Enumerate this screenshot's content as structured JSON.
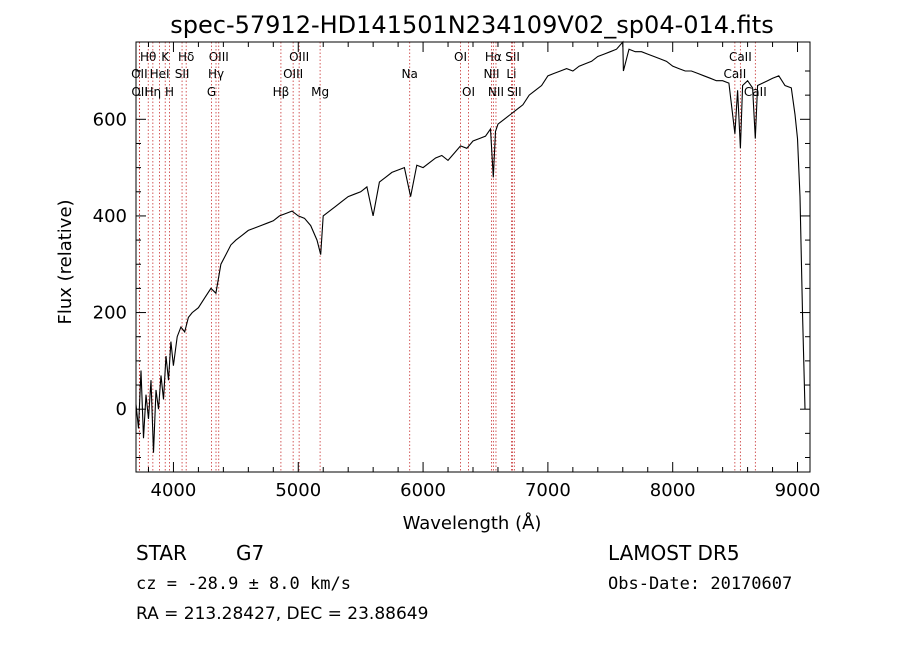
{
  "chart_data": {
    "type": "line",
    "title": "spec-57912-HD141501N234109V02_sp04-014.fits",
    "xlabel": "Wavelength (Å)",
    "ylabel": "Flux (relative)",
    "xlim": [
      3700,
      9100
    ],
    "ylim": [
      -130,
      760
    ],
    "xticks": [
      4000,
      5000,
      6000,
      7000,
      8000,
      9000
    ],
    "yticks": [
      0,
      200,
      400,
      600
    ],
    "grid": false,
    "legend": "none",
    "series": [
      {
        "x": [
          3700,
          3720,
          3740,
          3760,
          3780,
          3800,
          3820,
          3840,
          3860,
          3880,
          3900,
          3920,
          3940,
          3960,
          3980,
          4000,
          4030,
          4060,
          4090,
          4120,
          4150,
          4200,
          4250,
          4300,
          4340,
          4380,
          4420,
          4460,
          4500,
          4550,
          4600,
          4650,
          4700,
          4750,
          4800,
          4850,
          4900,
          4950,
          5000,
          5050,
          5100,
          5150,
          5180,
          5200,
          5250,
          5300,
          5350,
          5400,
          5450,
          5500,
          5550,
          5600,
          5650,
          5700,
          5750,
          5800,
          5850,
          5900,
          5950,
          6000,
          6050,
          6100,
          6150,
          6200,
          6250,
          6300,
          6350,
          6400,
          6450,
          6500,
          6540,
          6563,
          6580,
          6600,
          6650,
          6700,
          6750,
          6800,
          6850,
          6900,
          6950,
          7000,
          7050,
          7100,
          7150,
          7200,
          7250,
          7300,
          7350,
          7400,
          7450,
          7500,
          7550,
          7600,
          7605,
          7650,
          7700,
          7750,
          7800,
          7850,
          7900,
          7950,
          8000,
          8050,
          8100,
          8150,
          8200,
          8250,
          8300,
          8350,
          8400,
          8450,
          8498,
          8520,
          8542,
          8560,
          8600,
          8640,
          8662,
          8680,
          8720,
          8760,
          8800,
          8850,
          8900,
          8950,
          8980,
          9000,
          9020,
          9040,
          9060
        ],
        "values": [
          10,
          -40,
          80,
          -60,
          30,
          -20,
          60,
          -90,
          40,
          0,
          70,
          20,
          110,
          60,
          140,
          90,
          150,
          170,
          160,
          190,
          200,
          210,
          230,
          250,
          240,
          300,
          320,
          340,
          350,
          360,
          370,
          375,
          380,
          385,
          390,
          400,
          405,
          410,
          400,
          395,
          380,
          350,
          320,
          400,
          410,
          420,
          430,
          440,
          445,
          450,
          460,
          400,
          470,
          480,
          490,
          495,
          500,
          440,
          505,
          500,
          510,
          520,
          525,
          515,
          530,
          545,
          540,
          555,
          560,
          565,
          580,
          480,
          575,
          590,
          600,
          610,
          620,
          630,
          650,
          660,
          670,
          690,
          695,
          700,
          705,
          700,
          710,
          715,
          720,
          730,
          735,
          740,
          745,
          760,
          700,
          745,
          740,
          740,
          735,
          730,
          725,
          720,
          710,
          705,
          700,
          700,
          695,
          690,
          685,
          680,
          680,
          675,
          570,
          660,
          540,
          670,
          680,
          665,
          560,
          670,
          675,
          680,
          685,
          690,
          670,
          665,
          610,
          560,
          440,
          200,
          0
        ]
      }
    ],
    "line_markers": [
      {
        "label": "Hθ",
        "x": 3798,
        "row": 1
      },
      {
        "label": "OII",
        "x": 3727,
        "row": 2
      },
      {
        "label": "OII",
        "x": 3729,
        "row": 3
      },
      {
        "label": "K",
        "x": 3934,
        "row": 1
      },
      {
        "label": "HeI",
        "x": 3889,
        "row": 2
      },
      {
        "label": "Hη",
        "x": 3835,
        "row": 3
      },
      {
        "label": "H",
        "x": 3969,
        "row": 3
      },
      {
        "label": "Hδ",
        "x": 4102,
        "row": 1
      },
      {
        "label": "SII",
        "x": 4069,
        "row": 2
      },
      {
        "label": "OIII",
        "x": 4363,
        "row": 1
      },
      {
        "label": "Hγ",
        "x": 4341,
        "row": 2
      },
      {
        "label": "G",
        "x": 4305,
        "row": 3
      },
      {
        "label": "Hβ",
        "x": 4861,
        "row": 3
      },
      {
        "label": "OIII",
        "x": 5007,
        "row": 1
      },
      {
        "label": "OIII",
        "x": 4959,
        "row": 2
      },
      {
        "label": "Mg",
        "x": 5175,
        "row": 3
      },
      {
        "label": "Na",
        "x": 5893,
        "row": 2
      },
      {
        "label": "OI",
        "x": 6300,
        "row": 1
      },
      {
        "label": "OI",
        "x": 6364,
        "row": 3
      },
      {
        "label": "Hα",
        "x": 6563,
        "row": 1
      },
      {
        "label": "NII",
        "x": 6548,
        "row": 2
      },
      {
        "label": "NII",
        "x": 6584,
        "row": 3
      },
      {
        "label": "SII",
        "x": 6717,
        "row": 1
      },
      {
        "label": "Li",
        "x": 6708,
        "row": 2
      },
      {
        "label": "SII",
        "x": 6731,
        "row": 3
      },
      {
        "label": "CaII",
        "x": 8542,
        "row": 1
      },
      {
        "label": "CaII",
        "x": 8498,
        "row": 2
      },
      {
        "label": "CaII",
        "x": 8662,
        "row": 3
      }
    ]
  },
  "info": {
    "class": "STAR",
    "subclass": "G7",
    "survey": "LAMOST DR5",
    "cz": "cz = -28.9 ± 8.0 km/s",
    "obs_date": "Obs-Date: 20170607",
    "coords": "RA = 213.28427, DEC =  23.88649"
  }
}
